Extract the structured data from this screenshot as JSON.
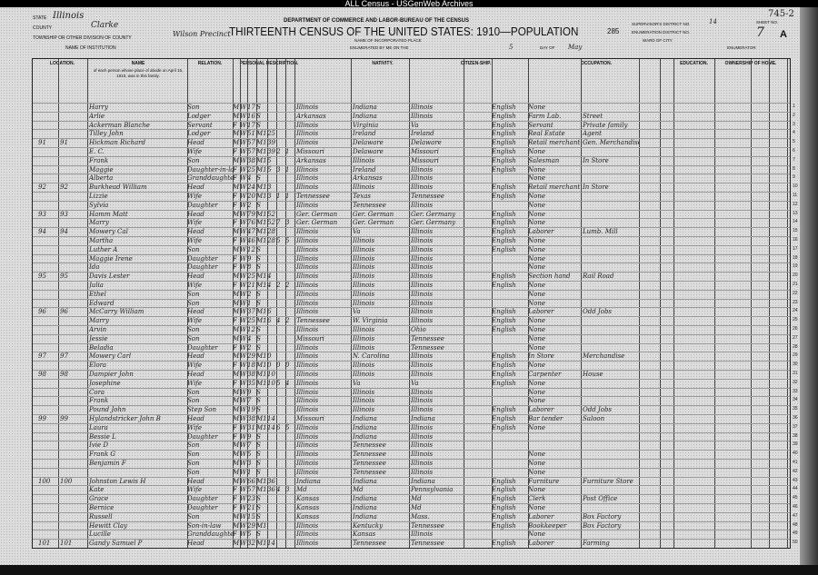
{
  "archive_banner": "ALL Census - USGenWeb Archives",
  "header": {
    "department": "DEPARTMENT OF COMMERCE AND LABOR-BUREAU OF THE CENSUS",
    "title": "THIRTEENTH CENSUS OF THE UNITED STATES: 1910—POPULATION",
    "page_number": "285",
    "stamp": "745-2",
    "state_label": "STATE",
    "state": "Illinois",
    "county_label": "COUNTY",
    "county": "Clarke",
    "township_label": "TOWNSHIP OR OTHER DIVISION OF COUNTY",
    "township": "Wilson Precinct",
    "institution_label": "NAME OF INSTITUTION",
    "place_label": "NAME OF INCORPORATED PLACE",
    "enumerated_label": "ENUMERATED BY ME ON THE",
    "enumerated_day": "5",
    "day_of_label": "DAY OF",
    "month": "May",
    "supervisor_label": "SUPERVISOR'S DISTRICT NO.",
    "supervisor": "14",
    "enumeration_label": "ENUMERATION DISTRICT NO.",
    "enumeration": "",
    "ward_label": "WARD OF CITY",
    "sheet_label": "SHEET NO.",
    "sheet": "7",
    "sheet_side": "A",
    "enumerator_label": "ENUMERATOR"
  },
  "columns": {
    "location": "LOCATION.",
    "name": "NAME",
    "name_desc": "of each person whose place of abode on April 15, 1910, was in this family.",
    "relation": "RELATION.",
    "personal": "PERSONAL DESCRIPTION.",
    "nativity": "NATIVITY.",
    "citizenship": "CITIZEN-SHIP.",
    "language": "",
    "occupation": "OCCUPATION.",
    "education": "EDUCATION.",
    "ownership": "OWNERSHIP OF HOME."
  },
  "rows": [
    [
      "",
      "",
      "Harry",
      "Son",
      "M",
      "W",
      "17",
      "S",
      "",
      "",
      "",
      "Illinois",
      "Indiana",
      "Illinois",
      "English",
      "None",
      ""
    ],
    [
      "",
      "",
      "Arlie",
      "Lodger",
      "M",
      "W",
      "16",
      "S",
      "",
      "",
      "",
      "Arkansas",
      "Indiana",
      "Illinois",
      "English",
      "Farm Lab.",
      "Street"
    ],
    [
      "",
      "",
      "Ackerman Blanche",
      "Servant",
      "F",
      "W",
      "17",
      "S",
      "",
      "",
      "",
      "Illinois",
      "Virginia",
      "Va",
      "English",
      "Servant",
      "Private family"
    ],
    [
      "",
      "",
      "Tilley John",
      "Lodger",
      "M",
      "W",
      "51",
      "M1",
      "25",
      "",
      "",
      "Illinois",
      "Ireland",
      "Ireland",
      "English",
      "Real Estate",
      "Agent"
    ],
    [
      "91",
      "91",
      "Hickman Richard",
      "Head",
      "M",
      "W",
      "57",
      "M1",
      "39",
      "",
      "",
      "Illinois",
      "Delaware",
      "Delaware",
      "English",
      "Retail merchant",
      "Gen. Merchandise"
    ],
    [
      "",
      "",
      "E. C.",
      "Wife",
      "F",
      "W",
      "57",
      "M1",
      "39",
      "2",
      "1",
      "Missouri",
      "Delaware",
      "Missouri",
      "English",
      "None",
      ""
    ],
    [
      "",
      "",
      "Frank",
      "Son",
      "M",
      "W",
      "38",
      "M1",
      "5",
      "",
      "",
      "Arkansas",
      "Illinois",
      "Missouri",
      "English",
      "Salesman",
      "In Store"
    ],
    [
      "",
      "",
      "Maggie",
      "Daughter-in-law",
      "F",
      "W",
      "25",
      "M1",
      "5",
      "3",
      "1",
      "Illinois",
      "Ireland",
      "Illinois",
      "English",
      "None",
      ""
    ],
    [
      "",
      "",
      "Alberta",
      "Granddaughter",
      "F",
      "W",
      "4",
      "S",
      "",
      "",
      "",
      "Illinois",
      "Arkansas",
      "Illinois",
      "",
      "None",
      ""
    ],
    [
      "92",
      "92",
      "Burkhead William",
      "Head",
      "M",
      "W",
      "24",
      "M1",
      "3",
      "",
      "",
      "Illinois",
      "Illinois",
      "Illinois",
      "English",
      "Retail merchant",
      "In Store"
    ],
    [
      "",
      "",
      "Lizzie",
      "Wife",
      "F",
      "W",
      "20",
      "M1",
      "3",
      "1",
      "1",
      "Tennessee",
      "Texas",
      "Tennessee",
      "English",
      "None",
      ""
    ],
    [
      "",
      "",
      "Sylvia",
      "Daughter",
      "F",
      "W",
      "2",
      "S",
      "",
      "",
      "",
      "Illinois",
      "Tennessee",
      "Illinois",
      "",
      "None",
      ""
    ],
    [
      "93",
      "93",
      "Hamm Matt",
      "Head",
      "M",
      "W",
      "79",
      "M1",
      "52",
      "",
      "",
      "Ger. German",
      "Ger. German",
      "Ger. Germany",
      "English",
      "None",
      ""
    ],
    [
      "",
      "",
      "Marry",
      "Wife",
      "F",
      "W",
      "76",
      "M1",
      "52",
      "7",
      "3",
      "Ger. German",
      "Ger. German",
      "Ger. Germany",
      "English",
      "None",
      ""
    ],
    [
      "94",
      "94",
      "Mowery Cal",
      "Head",
      "M",
      "W",
      "47",
      "M1",
      "28",
      "",
      "",
      "Illinois",
      "Va",
      "Illinois",
      "English",
      "Laborer",
      "Lumb. Mill"
    ],
    [
      "",
      "",
      "Martha",
      "Wife",
      "F",
      "W",
      "46",
      "M1",
      "28",
      "5",
      "5",
      "Illinois",
      "Illinois",
      "Illinois",
      "English",
      "None",
      ""
    ],
    [
      "",
      "",
      "Luther A",
      "Son",
      "M",
      "W",
      "12",
      "S",
      "",
      "",
      "",
      "Illinois",
      "Illinois",
      "Illinois",
      "English",
      "None",
      ""
    ],
    [
      "",
      "",
      "Maggie Irene",
      "Daughter",
      "F",
      "W",
      "9",
      "S",
      "",
      "",
      "",
      "Illinois",
      "Illinois",
      "Illinois",
      "",
      "None",
      ""
    ],
    [
      "",
      "",
      "Ida",
      "Daughter",
      "F",
      "W",
      "8",
      "S",
      "",
      "",
      "",
      "Illinois",
      "Illinois",
      "Illinois",
      "",
      "None",
      ""
    ],
    [
      "95",
      "95",
      "Davis Lester",
      "Head",
      "M",
      "W",
      "25",
      "M1",
      "4",
      "",
      "",
      "Illinois",
      "Illinois",
      "Illinois",
      "English",
      "Section hand",
      "Rail Road"
    ],
    [
      "",
      "",
      "Julia",
      "Wife",
      "F",
      "W",
      "21",
      "M1",
      "4",
      "2",
      "2",
      "Illinois",
      "Illinois",
      "Illinois",
      "English",
      "None",
      ""
    ],
    [
      "",
      "",
      "Ethel",
      "Son",
      "M",
      "W",
      "2",
      "S",
      "",
      "",
      "",
      "Illinois",
      "Illinois",
      "Illinois",
      "",
      "None",
      ""
    ],
    [
      "",
      "",
      "Edward",
      "Son",
      "M",
      "W",
      "1",
      "S",
      "",
      "",
      "",
      "Illinois",
      "Illinois",
      "Illinois",
      "",
      "None",
      ""
    ],
    [
      "96",
      "96",
      "McCarry William",
      "Head",
      "M",
      "W",
      "37",
      "M1",
      "6",
      "",
      "",
      "Illinois",
      "Va",
      "Illinois",
      "English",
      "Laborer",
      "Odd Jobs"
    ],
    [
      "",
      "",
      "Marry",
      "Wife",
      "F",
      "W",
      "25",
      "M1",
      "6",
      "4",
      "2",
      "Tennessee",
      "W. Virginia",
      "Illinois",
      "English",
      "None",
      ""
    ],
    [
      "",
      "",
      "Arvin",
      "Son",
      "M",
      "W",
      "12",
      "S",
      "",
      "",
      "",
      "Illinois",
      "Illinois",
      "Ohio",
      "English",
      "None",
      ""
    ],
    [
      "",
      "",
      "Jessie",
      "Son",
      "M",
      "W",
      "4",
      "S",
      "",
      "",
      "",
      "Missouri",
      "Illinois",
      "Tennessee",
      "",
      "None",
      ""
    ],
    [
      "",
      "",
      "Beladia",
      "Daughter",
      "F",
      "W",
      "2",
      "S",
      "",
      "",
      "",
      "Illinois",
      "Illinois",
      "Tennessee",
      "",
      "None",
      ""
    ],
    [
      "97",
      "97",
      "Mowery Carl",
      "Head",
      "M",
      "W",
      "29",
      "M1",
      "0",
      "",
      "",
      "Illinois",
      "N. Carolina",
      "Illinois",
      "English",
      "In Store",
      "Merchandise"
    ],
    [
      "",
      "",
      "Elora",
      "Wife",
      "F",
      "W",
      "18",
      "M1",
      "0",
      "0",
      "0",
      "Illinois",
      "Illinois",
      "Illinois",
      "English",
      "None",
      ""
    ],
    [
      "98",
      "98",
      "Dampier John",
      "Head",
      "M",
      "W",
      "38",
      "M1",
      "10",
      "",
      "",
      "Illinois",
      "Illinois",
      "Illinois",
      "English",
      "Carpenter",
      "House"
    ],
    [
      "",
      "",
      "Josephine",
      "Wife",
      "F",
      "W",
      "35",
      "M1",
      "10",
      "5",
      "4",
      "Illinois",
      "Va",
      "Va",
      "English",
      "None",
      ""
    ],
    [
      "",
      "",
      "Cora",
      "Son",
      "M",
      "W",
      "9",
      "S",
      "",
      "",
      "",
      "Illinois",
      "Illinois",
      "Illinois",
      "",
      "None",
      ""
    ],
    [
      "",
      "",
      "Frank",
      "Son",
      "M",
      "W",
      "7",
      "S",
      "",
      "",
      "",
      "Illinois",
      "Illinois",
      "Illinois",
      "",
      "None",
      ""
    ],
    [
      "",
      "",
      "Pound John",
      "Step Son",
      "M",
      "W",
      "19",
      "S",
      "",
      "",
      "",
      "Illinois",
      "Illinois",
      "Illinois",
      "English",
      "Laborer",
      "Odd Jobs"
    ],
    [
      "99",
      "99",
      "Hylandstricker John B",
      "Head",
      "M",
      "W",
      "38",
      "M1",
      "14",
      "",
      "",
      "Missouri",
      "Indiana",
      "Indiana",
      "English",
      "Bar tender",
      "Saloon"
    ],
    [
      "",
      "",
      "Laura",
      "Wife",
      "F",
      "W",
      "31",
      "M1",
      "14",
      "6",
      "5",
      "Illinois",
      "Indiana",
      "Illinois",
      "English",
      "None",
      ""
    ],
    [
      "",
      "",
      "Bessie L",
      "Daughter",
      "F",
      "W",
      "9",
      "S",
      "",
      "",
      "",
      "Illinois",
      "Indiana",
      "Illinois",
      "",
      "",
      ""
    ],
    [
      "",
      "",
      "Ivie D",
      "Son",
      "M",
      "W",
      "7",
      "S",
      "",
      "",
      "",
      "Illinois",
      "Tennessee",
      "Illinois",
      "",
      "",
      ""
    ],
    [
      "",
      "",
      "Frank G",
      "Son",
      "M",
      "W",
      "5",
      "S",
      "",
      "",
      "",
      "Illinois",
      "Tennessee",
      "Illinois",
      "",
      "None",
      ""
    ],
    [
      "",
      "",
      "Benjamin F",
      "Son",
      "M",
      "W",
      "3",
      "S",
      "",
      "",
      "",
      "Illinois",
      "Tennessee",
      "Illinois",
      "",
      "None",
      ""
    ],
    [
      "",
      "",
      "",
      "Son",
      "M",
      "W",
      "1",
      "S",
      "",
      "",
      "",
      "Illinois",
      "Tennessee",
      "Illinois",
      "",
      "None",
      ""
    ],
    [
      "100",
      "100",
      "Johnston Lewis H",
      "Head",
      "M",
      "W",
      "66",
      "M1",
      "36",
      "",
      "",
      "Indiana",
      "Indiana",
      "Indiana",
      "English",
      "Furniture",
      "Furniture Store"
    ],
    [
      "",
      "",
      "Kate",
      "Wife",
      "F",
      "W",
      "57",
      "M1",
      "36",
      "4",
      "3",
      "Md",
      "Md",
      "Pennsylvania",
      "English",
      "None",
      ""
    ],
    [
      "",
      "",
      "Grace",
      "Daughter",
      "F",
      "W",
      "23",
      "S",
      "",
      "",
      "",
      "Kansas",
      "Indiana",
      "Md",
      "English",
      "Clerk",
      "Post Office"
    ],
    [
      "",
      "",
      "Bernice",
      "Daughter",
      "F",
      "W",
      "21",
      "S",
      "",
      "",
      "",
      "Kansas",
      "Indiana",
      "Md",
      "English",
      "None",
      ""
    ],
    [
      "",
      "",
      "Russell",
      "Son",
      "M",
      "W",
      "15",
      "S",
      "",
      "",
      "",
      "Kansas",
      "Indiana",
      "Mass.",
      "English",
      "Laborer",
      "Box Factory"
    ],
    [
      "",
      "",
      "Hewitt Clay",
      "Son-in-law",
      "M",
      "W",
      "29",
      "M1",
      "",
      "",
      "",
      "Illinois",
      "Kentucky",
      "Tennessee",
      "English",
      "Bookkeeper",
      "Box Factory"
    ],
    [
      "",
      "",
      "Lucille",
      "Granddaughter",
      "F",
      "W",
      "5",
      "S",
      "",
      "",
      "",
      "Illinois",
      "Kansas",
      "Illinois",
      "",
      "None",
      ""
    ],
    [
      "101",
      "101",
      "Gandy Samuel P",
      "Head",
      "M",
      "W",
      "32",
      "M1",
      "14",
      "",
      "",
      "Illinois",
      "Tennessee",
      "Tennessee",
      "English",
      "Laborer",
      "Farming"
    ]
  ]
}
